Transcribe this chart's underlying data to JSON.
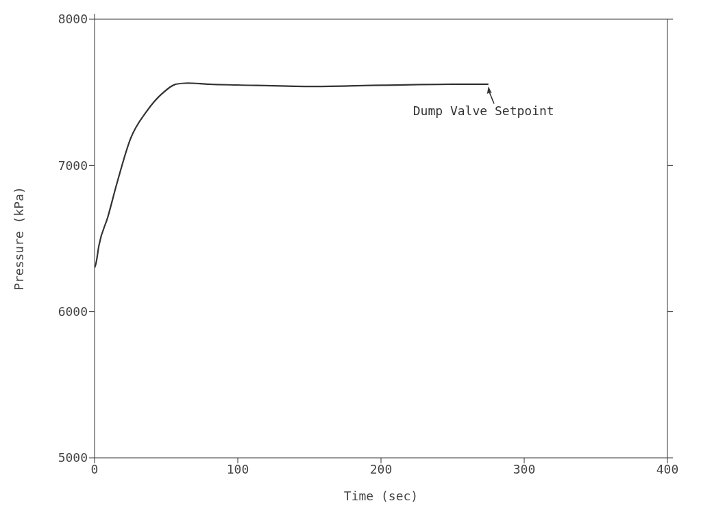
{
  "chart_data": {
    "type": "line",
    "xlabel": "Time (sec)",
    "ylabel": "Pressure (kPa)",
    "x": [
      0,
      1,
      3,
      9.2,
      15.6,
      25.2,
      36.4,
      47.5,
      57,
      65,
      80,
      100,
      150,
      200,
      250,
      275
    ],
    "series": [
      {
        "color": "#333333",
        "values": [
          6300,
          6330,
          6450,
          6645,
          6877,
          7185,
          7370,
          7494,
          7556,
          7563,
          7555,
          7550,
          7540,
          7548,
          7555,
          7555
        ]
      }
    ],
    "xlim": [
      0,
      400
    ],
    "xticks": [
      0,
      100,
      200,
      300,
      400
    ],
    "ylim": [
      5000,
      8000
    ],
    "yticks": [
      5000,
      6000,
      7000,
      8000
    ],
    "grid": false,
    "legend": false,
    "marker": "none",
    "line_style": "solid",
    "annotations": [
      {
        "text": "Dump Valve Setpoint",
        "x": 275,
        "y": 7555
      }
    ]
  }
}
